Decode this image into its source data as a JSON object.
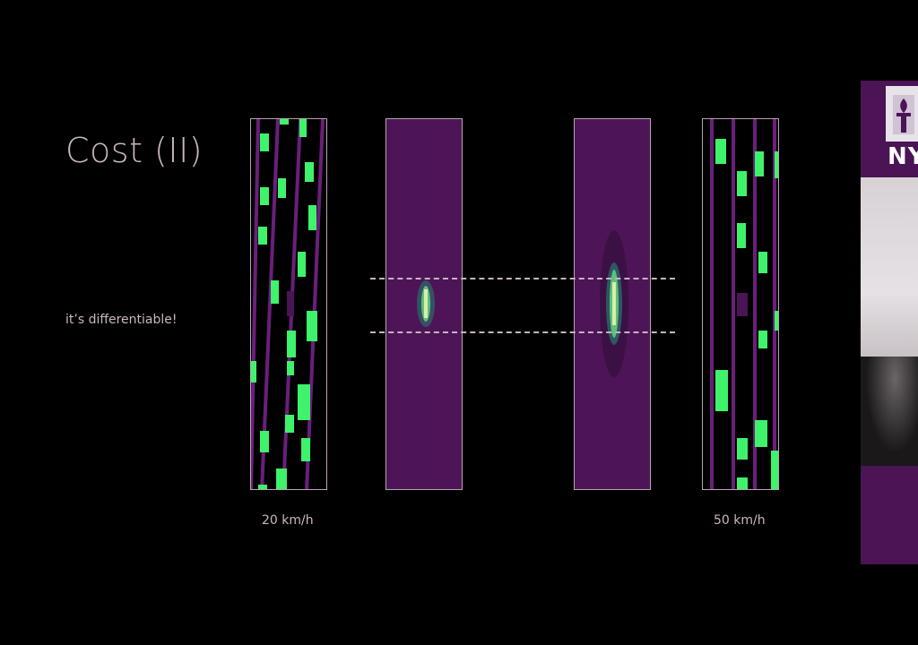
{
  "slide": {
    "title": "Cost (II)",
    "subtitle": "it’s differentiable!",
    "left_speed_label": "20 km/h",
    "right_speed_label": "50 km/h"
  },
  "colors": {
    "background": "#000000",
    "text": "#c9b7bc",
    "lane": "#6a1f7a",
    "car": "#3ff26b",
    "mask_fill": "#4d1557",
    "frame": "#b8a3b2"
  },
  "video": {
    "logo_text": "NY",
    "logo_icon": "torch-icon"
  }
}
